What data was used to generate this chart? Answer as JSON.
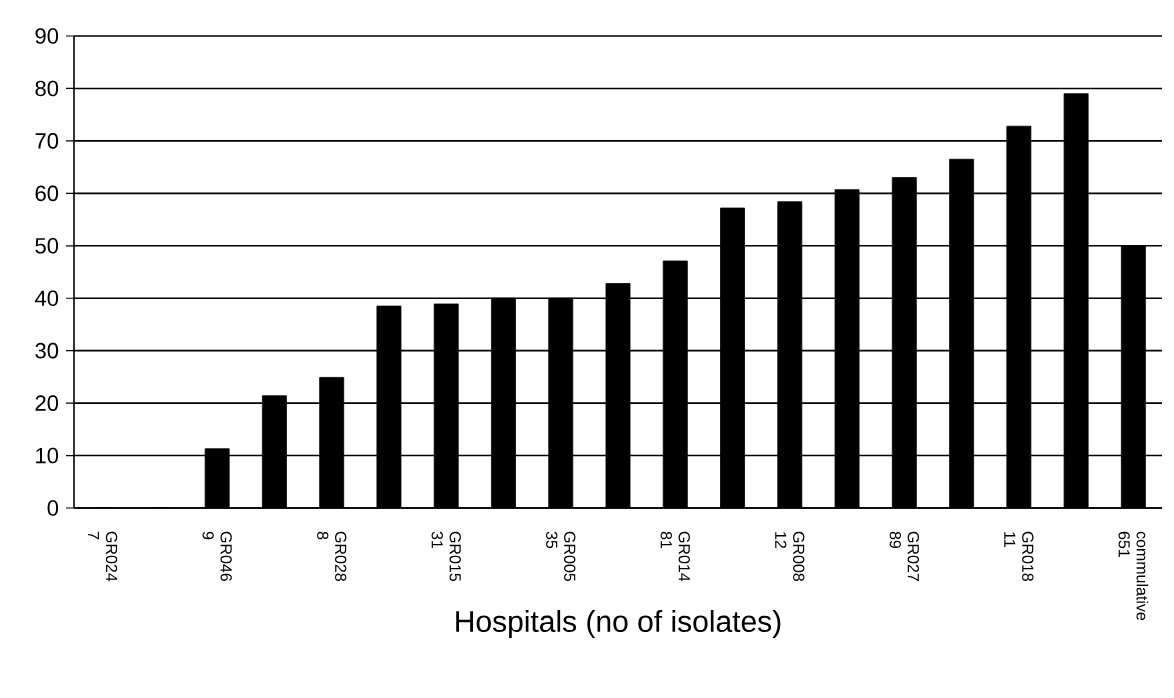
{
  "chart_data": {
    "type": "bar",
    "xlabel": "Hospitals (no of isolates)",
    "categories": [
      "GR024 7",
      null,
      "GR046 9",
      null,
      "GR028 8",
      null,
      "GR015 31",
      null,
      "GR005 35",
      null,
      "GR014 81",
      null,
      "GR008 12",
      null,
      "GR027 89",
      null,
      "GR018 11",
      null,
      "commulative 651"
    ],
    "values": [
      0,
      0,
      11.3,
      21.4,
      24.9,
      38.5,
      38.9,
      40,
      40,
      42.8,
      47.1,
      57.2,
      58.4,
      60.7,
      63,
      66.5,
      72.8,
      79,
      50
    ],
    "color": "#000000",
    "ylim": [
      0,
      90
    ],
    "yticks": [
      0,
      10,
      20,
      30,
      40,
      50,
      60,
      70,
      80,
      90
    ],
    "grid": "y"
  }
}
